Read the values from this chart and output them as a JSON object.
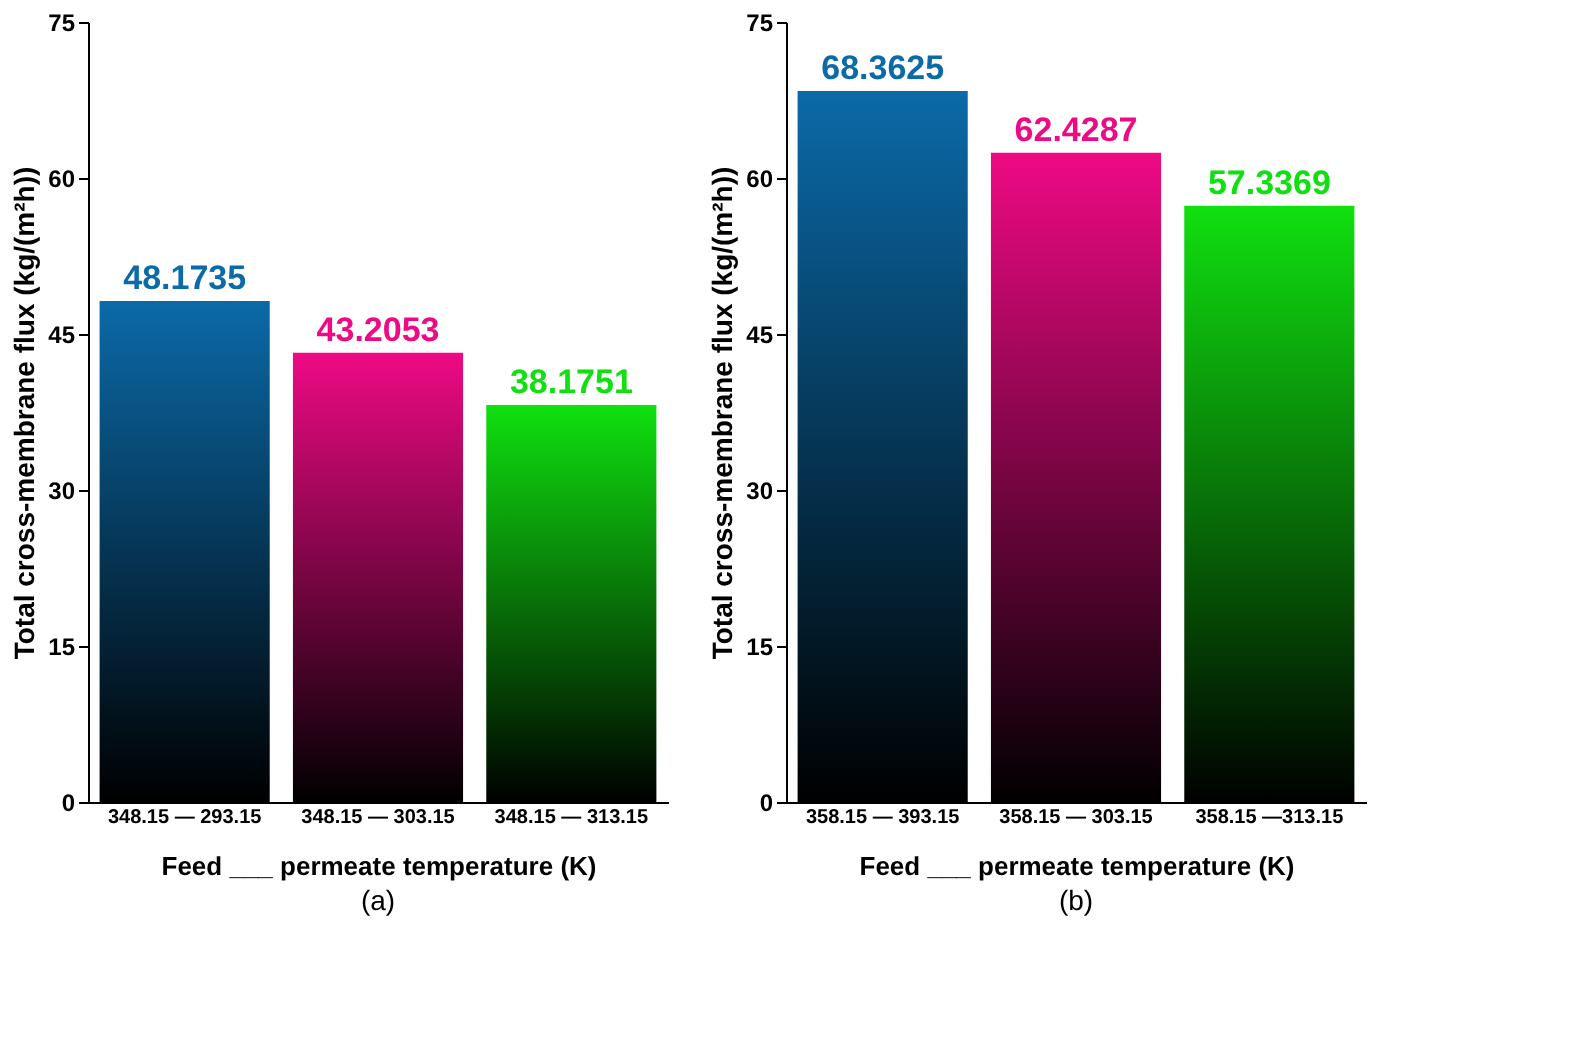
{
  "chart_data": [
    {
      "type": "bar",
      "categories": [
        "348.15 — 293.15",
        "348.15 — 303.15",
        "348.15 — 313.15"
      ],
      "values": [
        48.1735,
        43.2053,
        38.1751
      ],
      "colors": [
        "#0b6aa8",
        "#ee0a84",
        "#10e010"
      ],
      "ylim": [
        0,
        75
      ],
      "yticks": [
        0,
        15,
        30,
        45,
        60,
        75
      ],
      "ylabel": "Total cross-membrane flux (kg/(m²h))",
      "xlabel": "Feed ___ permeate temperature (K)",
      "annotations": [
        "(a)"
      ],
      "data_labels": true,
      "grid": false
    },
    {
      "type": "bar",
      "categories": [
        "358.15 — 393.15",
        "358.15 — 303.15",
        "358.15 —313.15"
      ],
      "values": [
        68.3625,
        62.4287,
        57.3369
      ],
      "colors": [
        "#0b6aa8",
        "#ee0a84",
        "#10e010"
      ],
      "ylim": [
        0,
        75
      ],
      "yticks": [
        0,
        15,
        30,
        45,
        60,
        75
      ],
      "ylabel": "Total cross-membrane flux (kg/(m²h))",
      "xlabel": "Feed ___ permeate temperature (K)",
      "annotations": [
        "(b)"
      ],
      "data_labels": true,
      "grid": false
    }
  ]
}
